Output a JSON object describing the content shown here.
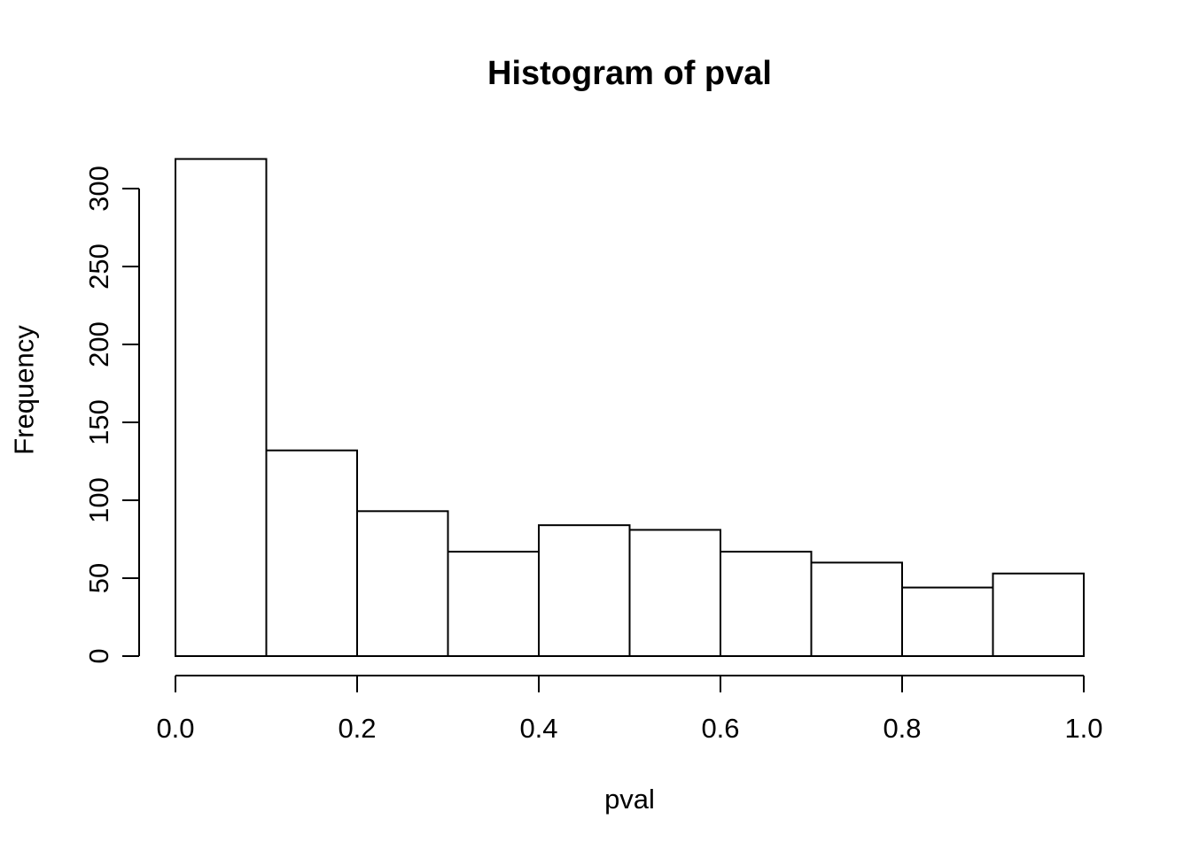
{
  "chart_data": {
    "type": "bar",
    "subtype": "histogram",
    "title": "Histogram of pval",
    "xlabel": "pval",
    "ylabel": "Frequency",
    "bin_edges": [
      0.0,
      0.1,
      0.2,
      0.3,
      0.4,
      0.5,
      0.6,
      0.7,
      0.8,
      0.9,
      1.0
    ],
    "counts": [
      319,
      132,
      93,
      67,
      84,
      81,
      67,
      60,
      44,
      53
    ],
    "x_ticks": [
      {
        "v": 0.0,
        "label": "0.0"
      },
      {
        "v": 0.2,
        "label": "0.2"
      },
      {
        "v": 0.4,
        "label": "0.4"
      },
      {
        "v": 0.6,
        "label": "0.6"
      },
      {
        "v": 0.8,
        "label": "0.8"
      },
      {
        "v": 1.0,
        "label": "1.0"
      }
    ],
    "y_ticks": [
      {
        "v": 0,
        "label": "0"
      },
      {
        "v": 50,
        "label": "50"
      },
      {
        "v": 100,
        "label": "100"
      },
      {
        "v": 150,
        "label": "150"
      },
      {
        "v": 200,
        "label": "200"
      },
      {
        "v": 250,
        "label": "250"
      },
      {
        "v": 300,
        "label": "300"
      }
    ],
    "x_axis_range": [
      0.0,
      1.0
    ],
    "y_axis_range": [
      0,
      300
    ],
    "grid": false,
    "legend": null,
    "bar_fill": "#ffffff",
    "bar_stroke": "#000000",
    "background": "#ffffff"
  }
}
